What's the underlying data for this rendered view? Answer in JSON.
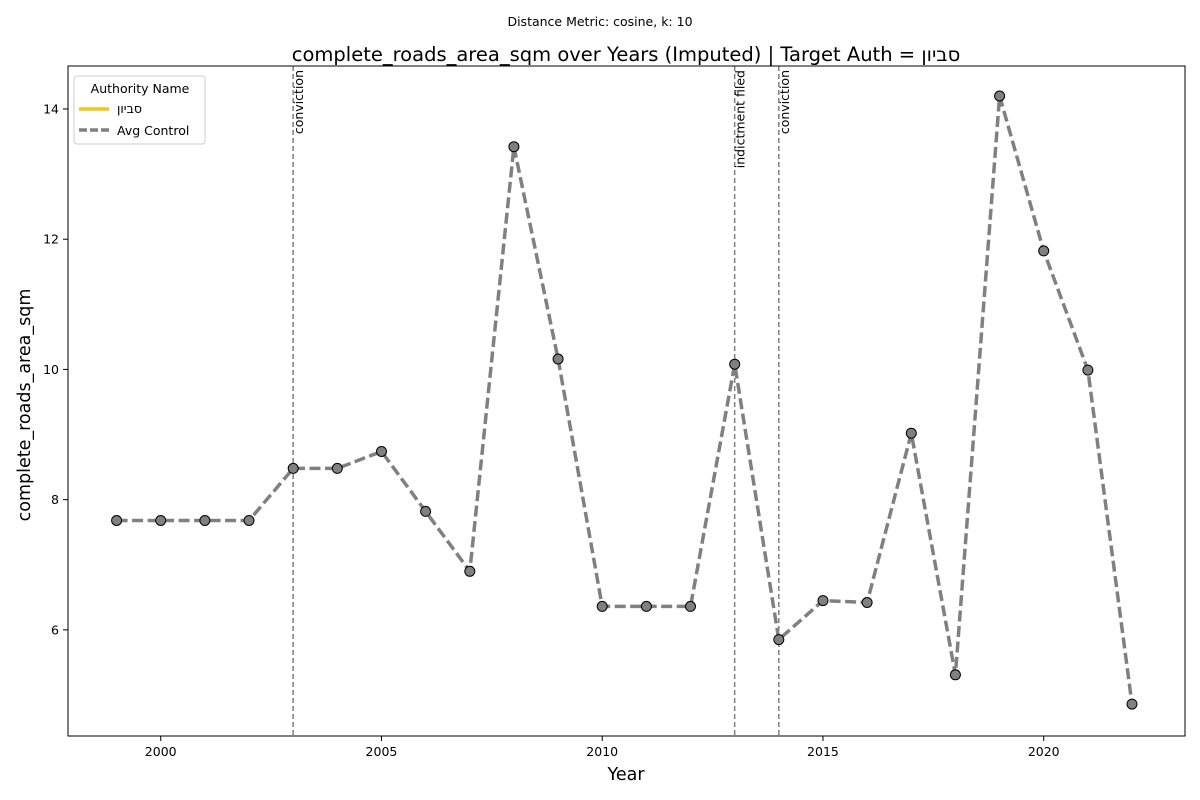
{
  "chart_data": {
    "type": "line",
    "suptitle": "Distance Metric: cosine, k: 10",
    "title": "complete_roads_area_sqm over Years (Imputed) | Target Auth = סביון",
    "xlabel": "Year",
    "ylabel": "complete_roads_area_sqm",
    "xlim": [
      1997.9,
      2023.2
    ],
    "ylim": [
      4.37,
      14.66
    ],
    "xticks": [
      2000,
      2005,
      2010,
      2015,
      2020
    ],
    "yticks": [
      6,
      8,
      10,
      12,
      14
    ],
    "grid": false,
    "legend": {
      "title": "Authority Name",
      "placement": "top-left",
      "entries": [
        {
          "label": "סביון",
          "color": "#ecc81f",
          "style": "solid"
        },
        {
          "label": "Avg Control",
          "color": "#808080",
          "style": "dashed"
        }
      ]
    },
    "series": [
      {
        "name": "Avg Control",
        "color": "#808080",
        "style": "dashed",
        "marker": "circle",
        "x": [
          1999,
          2000,
          2001,
          2002,
          2003,
          2004,
          2005,
          2006,
          2007,
          2008,
          2009,
          2010,
          2011,
          2012,
          2013,
          2014,
          2015,
          2016,
          2017,
          2018,
          2019,
          2020,
          2021,
          2022
        ],
        "y": [
          7.68,
          7.68,
          7.68,
          7.68,
          8.48,
          8.48,
          8.74,
          7.82,
          6.9,
          13.42,
          10.16,
          6.36,
          6.36,
          6.36,
          10.08,
          5.85,
          6.45,
          6.42,
          9.02,
          5.31,
          14.2,
          11.82,
          9.99,
          4.86
        ]
      }
    ],
    "events": [
      {
        "x": 2003,
        "label": "conviction"
      },
      {
        "x": 2013,
        "label": "indictment filed"
      },
      {
        "x": 2014,
        "label": "conviction"
      }
    ]
  }
}
